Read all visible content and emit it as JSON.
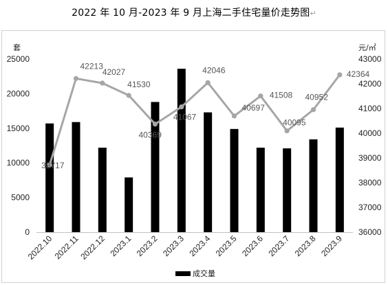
{
  "title": {
    "text": "2022 年 10 月-2023 年 9 月上海二手住宅量价走势图",
    "mark": "↵"
  },
  "chart_data": {
    "type": "bar",
    "title": "2022 年 10 月-2023 年 9 月上海二手住宅量价走势图",
    "categories": [
      "2022.10",
      "2022.11",
      "2022.12",
      "2023.1",
      "2023.2",
      "2023.3",
      "2023.4",
      "2023.5",
      "2023.6",
      "2023.7",
      "2023.8",
      "2023.9"
    ],
    "series": [
      {
        "name": "成交量",
        "type": "bar",
        "axis": "left",
        "color": "#000000",
        "values": [
          15700,
          15900,
          12200,
          7900,
          18800,
          23600,
          17300,
          14900,
          12200,
          12100,
          13400,
          15100
        ]
      },
      {
        "name": "",
        "type": "line",
        "axis": "right",
        "color": "#a6a6a6",
        "values": [
          38717,
          42213,
          42027,
          41530,
          40369,
          41067,
          42046,
          40697,
          41508,
          40095,
          40952,
          42364
        ],
        "labels": [
          "38717",
          "42213",
          "42027",
          "41530",
          "40369",
          "41067",
          "42046",
          "40697",
          "41508",
          "40095",
          "40952",
          "42364"
        ]
      }
    ],
    "y_left": {
      "label": "套",
      "min": 0,
      "max": 25000,
      "step": 5000,
      "ticks": [
        "0",
        "5000",
        "10000",
        "15000",
        "20000",
        "25000"
      ]
    },
    "y_right": {
      "label": "元/㎡",
      "min": 36000,
      "max": 43000,
      "step": 1000,
      "ticks": [
        "36000",
        "37000",
        "38000",
        "39000",
        "40000",
        "41000",
        "42000",
        "43000"
      ]
    },
    "grid": false,
    "legend": {
      "position": "bottom",
      "entries": [
        "成交量"
      ]
    }
  }
}
